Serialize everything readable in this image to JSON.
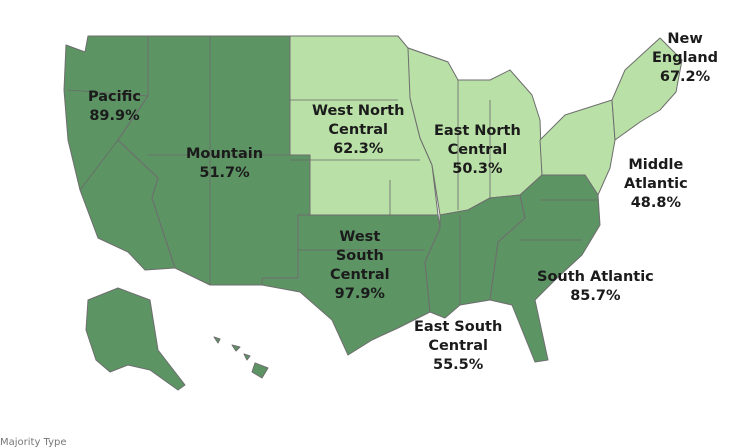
{
  "regions": [
    {
      "id": "pacific",
      "name_lines": [
        "Pacific"
      ],
      "value": "89.9%",
      "majority": "dark"
    },
    {
      "id": "mountain",
      "name_lines": [
        "Mountain"
      ],
      "value": "51.7%",
      "majority": "dark"
    },
    {
      "id": "west-north-central",
      "name_lines": [
        "West North",
        "Central"
      ],
      "value": "62.3%",
      "majority": "light"
    },
    {
      "id": "east-north-central",
      "name_lines": [
        "East North",
        "Central"
      ],
      "value": "50.3%",
      "majority": "light"
    },
    {
      "id": "new-england",
      "name_lines": [
        "New",
        "England"
      ],
      "value": "67.2%",
      "majority": "light"
    },
    {
      "id": "middle-atlantic",
      "name_lines": [
        "Middle",
        "Atlantic"
      ],
      "value": "48.8%",
      "majority": "light"
    },
    {
      "id": "west-south-central",
      "name_lines": [
        "West",
        "South",
        "Central"
      ],
      "value": "97.9%",
      "majority": "dark"
    },
    {
      "id": "east-south-central",
      "name_lines": [
        "East South",
        "Central"
      ],
      "value": "55.5%",
      "majority": "dark"
    },
    {
      "id": "south-atlantic",
      "name_lines": [
        "South Atlantic"
      ],
      "value": "85.7%",
      "majority": "dark"
    }
  ],
  "colors": {
    "dark": "#5c9464",
    "light": "#b9e0a6"
  },
  "legend": {
    "title": "Majority Type"
  }
}
